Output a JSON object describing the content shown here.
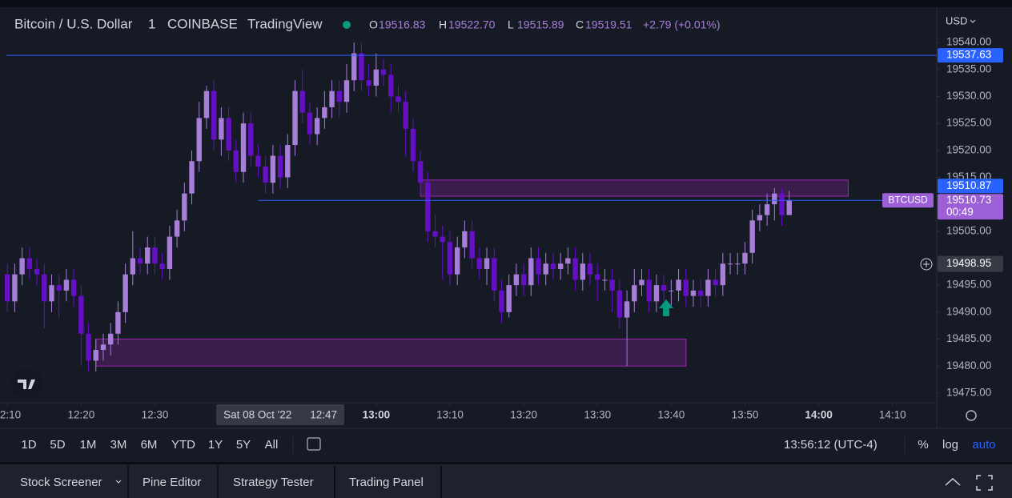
{
  "header": {
    "symbol": "Bitcoin / U.S. Dollar",
    "interval": "1",
    "exchange": "COINBASE",
    "source": "TradingView",
    "ohlc": [
      {
        "label": "O",
        "value": "19516.83"
      },
      {
        "label": "H",
        "value": "19522.70"
      },
      {
        "label": "L",
        "value": "19515.89"
      },
      {
        "label": "C",
        "value": "19519.51"
      }
    ],
    "change": "+2.79 (+0.01%)"
  },
  "currency": "USD",
  "chart_data": {
    "type": "candlestick",
    "x": [
      "12:10",
      "12:11",
      "12:12",
      "12:13",
      "12:14",
      "12:15",
      "12:16",
      "12:17",
      "12:18",
      "12:19",
      "12:20",
      "12:21",
      "12:22",
      "12:23",
      "12:24",
      "12:25",
      "12:26",
      "12:27",
      "12:28",
      "12:29",
      "12:30",
      "12:31",
      "12:32",
      "12:33",
      "12:34",
      "12:35",
      "12:36",
      "12:37",
      "12:38",
      "12:39",
      "12:40",
      "12:41",
      "12:42",
      "12:43",
      "12:44",
      "12:45",
      "12:46",
      "12:47",
      "12:48",
      "12:49",
      "12:50",
      "12:51",
      "12:52",
      "12:53",
      "12:54",
      "12:55",
      "12:56",
      "12:57",
      "12:58",
      "12:59",
      "13:00",
      "13:01",
      "13:02",
      "13:03",
      "13:04",
      "13:05",
      "13:06",
      "13:07",
      "13:08",
      "13:09",
      "13:10",
      "13:11",
      "13:12",
      "13:13",
      "13:14",
      "13:15",
      "13:16",
      "13:17",
      "13:18",
      "13:19",
      "13:20",
      "13:21",
      "13:22",
      "13:23",
      "13:24",
      "13:25",
      "13:26",
      "13:27",
      "13:28",
      "13:29",
      "13:30",
      "13:31",
      "13:32",
      "13:33",
      "13:34",
      "13:35",
      "13:36",
      "13:37",
      "13:38",
      "13:39",
      "13:40",
      "13:41",
      "13:42",
      "13:43",
      "13:44",
      "13:45",
      "13:46",
      "13:47",
      "13:48",
      "13:49",
      "13:50",
      "13:51",
      "13:52",
      "13:53",
      "13:54",
      "13:55",
      "13:56"
    ],
    "open": [
      19497,
      19492,
      19497,
      19500,
      19498,
      19497,
      19492,
      19495,
      19494,
      19496,
      19493,
      19486,
      19481,
      19483,
      19484,
      19486,
      19490,
      19497,
      19500,
      19499,
      19502,
      19499,
      19498,
      19504,
      19507,
      19512,
      19518,
      19526,
      19531,
      19522,
      19526,
      19520,
      19516,
      19525,
      19519,
      19517,
      19514,
      19519,
      19515,
      19521,
      19531,
      19527,
      19523,
      19526,
      19528,
      19531,
      19529,
      19533,
      19538,
      19533,
      19532,
      19535,
      19534,
      19530,
      19529,
      19524,
      19518,
      19514,
      19505,
      19504,
      19503,
      19497,
      19502,
      19505,
      19500,
      19498,
      19500,
      19494,
      19490,
      19495,
      19497,
      19495,
      19500,
      19497,
      19499,
      19498,
      19499,
      19500,
      19496,
      19499,
      19497,
      19496,
      19496,
      19494,
      19489,
      19492,
      19495,
      19496,
      19492,
      19495,
      19494,
      19494,
      19496,
      19493,
      19494,
      19493,
      19496,
      19495,
      19499,
      19499,
      19499,
      19501,
      19507,
      19508,
      19510,
      19512,
      19508
    ],
    "high": [
      19499,
      19499,
      19502,
      19502,
      19500,
      19499,
      19497,
      19497,
      19498,
      19498,
      19495,
      19488,
      19485,
      19486,
      19488,
      19492,
      19499,
      19505,
      19502,
      19504,
      19504,
      19501,
      19506,
      19509,
      19514,
      19520,
      19529,
      19532,
      19533,
      19528,
      19528,
      19522,
      19527,
      19527,
      19521,
      19519,
      19521,
      19521,
      19523,
      19533,
      19535,
      19529,
      19528,
      19531,
      19533,
      19533,
      19536,
      19540,
      19540,
      19536,
      19538,
      19537,
      19536,
      19532,
      19531,
      19526,
      19520,
      19516,
      19508,
      19506,
      19505,
      19504,
      19507,
      19507,
      19502,
      19502,
      19502,
      19496,
      19497,
      19499,
      19499,
      19502,
      19502,
      19501,
      19501,
      19501,
      19502,
      19502,
      19501,
      19501,
      19499,
      19498,
      19498,
      19496,
      19494,
      19498,
      19498,
      19498,
      19497,
      19497,
      19496,
      19498,
      19498,
      19496,
      19496,
      19498,
      19498,
      19501,
      19501,
      19501,
      19503,
      19509,
      19510,
      19512,
      19513,
      19513,
      19512.5
    ],
    "low": [
      19490,
      19490,
      19495,
      19496,
      19495,
      19487,
      19490,
      19489,
      19492,
      19491,
      19480,
      19479,
      19479,
      19481,
      19482,
      19484,
      19488,
      19495,
      19497,
      19497,
      19497,
      19496,
      19496,
      19502,
      19505,
      19510,
      19516,
      19524,
      19520,
      19519,
      19518,
      19514,
      19514,
      19517,
      19515,
      19512,
      19512,
      19513,
      19513,
      19519,
      19525,
      19521,
      19521,
      19524,
      19526,
      19526,
      19527,
      19531,
      19531,
      19530,
      19530,
      19532,
      19527,
      19527,
      19519,
      19516,
      19512,
      19503,
      19502,
      19496,
      19495,
      19495,
      19500,
      19498,
      19496,
      19495,
      19492,
      19488,
      19489,
      19493,
      19493,
      19493,
      19495,
      19495,
      19496,
      19496,
      19497,
      19494,
      19494,
      19495,
      19492,
      19494,
      19490,
      19487,
      19480,
      19490,
      19493,
      19490,
      19490,
      19492,
      19491,
      19492,
      19491,
      19491,
      19491,
      19491,
      19493,
      19493,
      19497,
      19497,
      19497,
      19499,
      19505,
      19506,
      19507,
      19506,
      19508
    ],
    "close": [
      19492,
      19497,
      19500,
      19498,
      19497,
      19492,
      19495,
      19494,
      19496,
      19493,
      19486,
      19481,
      19483,
      19484,
      19486,
      19490,
      19497,
      19500,
      19499,
      19502,
      19499,
      19498,
      19504,
      19507,
      19512,
      19518,
      19526,
      19531,
      19522,
      19526,
      19520,
      19516,
      19525,
      19519,
      19517,
      19514,
      19519,
      19515,
      19521,
      19531,
      19527,
      19523,
      19526,
      19528,
      19531,
      19529,
      19533,
      19538,
      19533,
      19532,
      19535,
      19534,
      19530,
      19529,
      19524,
      19518,
      19514,
      19505,
      19504,
      19503,
      19497,
      19502,
      19505,
      19500,
      19498,
      19500,
      19494,
      19490,
      19495,
      19497,
      19495,
      19500,
      19497,
      19499,
      19498,
      19499,
      19500,
      19496,
      19499,
      19497,
      19496,
      19496,
      19494,
      19489,
      19492,
      19495,
      19496,
      19492,
      19495,
      19494,
      19494,
      19496,
      19493,
      19494,
      19493,
      19496,
      19495,
      19499,
      19499,
      19499,
      19501,
      19507,
      19508,
      19510,
      19512,
      19508,
      19510.73
    ],
    "up_color": "#a77fd9",
    "down_color": "#6610c6",
    "xlim": [
      "12:09",
      "14:16"
    ],
    "ylim": [
      19473.2,
      19546.4
    ],
    "xticks": [
      "12:10",
      "12:20",
      "12:30",
      "13:00",
      "13:10",
      "13:20",
      "13:30",
      "13:40",
      "13:50",
      "14:00",
      "14:10"
    ],
    "yticks": [
      {
        "value": 19540,
        "label": "19540.00"
      },
      {
        "value": 19535,
        "label": "19535.00"
      },
      {
        "value": 19530,
        "label": "19530.00"
      },
      {
        "value": 19525,
        "label": "19525.00"
      },
      {
        "value": 19520,
        "label": "19520.00"
      },
      {
        "value": 19515,
        "label": "19515.00"
      },
      {
        "value": 19505,
        "label": "19505.00"
      },
      {
        "value": 19495,
        "label": "19495.00"
      },
      {
        "value": 19490,
        "label": "19490.00"
      },
      {
        "value": 19485,
        "label": "19485.00"
      },
      {
        "value": 19480,
        "label": "19480.00"
      },
      {
        "value": 19475,
        "label": "19475.00"
      }
    ],
    "price_line": {
      "value": 19537.63,
      "label": "19537.63",
      "color": "#2962ff"
    },
    "bid": {
      "value": 19510.87,
      "label": "19510.87",
      "color": "#2962ff"
    },
    "last_price": {
      "value": 19510.73,
      "label": "19510.73",
      "countdown": "00:49",
      "symbol_label": "BTCUSD",
      "from": "12:44",
      "color": "#9c5fd6"
    },
    "crosshair": {
      "price": {
        "value": 19498.95,
        "label": "19498.95"
      },
      "date": "Sat 08 Oct '22",
      "time": "12:47"
    },
    "zones": [
      {
        "from": "13:06",
        "to": "14:04",
        "top": 19514.5,
        "bottom": 19511.5
      },
      {
        "from": "12:22",
        "to": "13:42",
        "top": 19485,
        "bottom": 19480
      }
    ]
  },
  "toolbar": {
    "ranges": [
      "1D",
      "5D",
      "1M",
      "3M",
      "6M",
      "YTD",
      "1Y",
      "5Y",
      "All"
    ],
    "clock": "13:56:12 (UTC-4)",
    "percent": "%",
    "log": "log",
    "auto": "auto"
  },
  "panel": {
    "tabs": [
      "Stock Screener",
      "Pine Editor",
      "Strategy Tester",
      "Trading Panel"
    ]
  }
}
